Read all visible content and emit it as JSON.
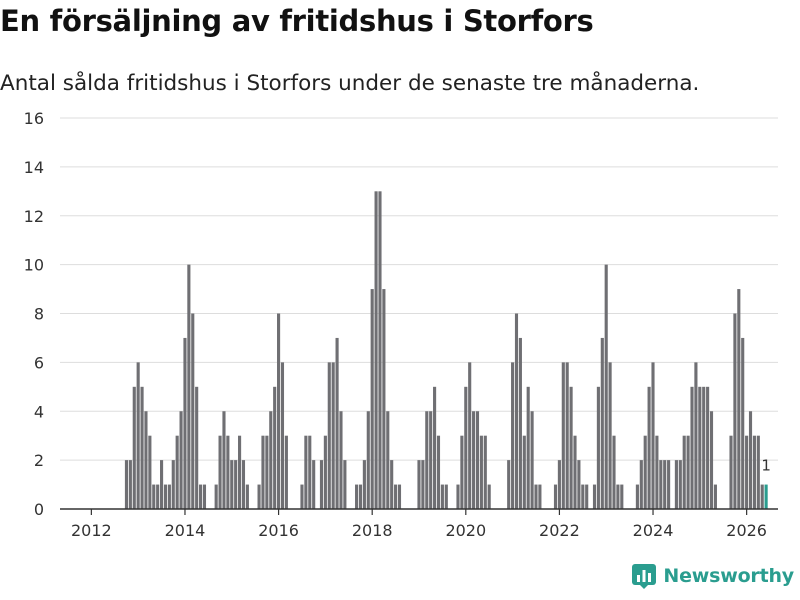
{
  "header": {
    "title": "En försäljning av fritidshus i Storfors",
    "subtitle": "Antal sålda fritidshus i Storfors under de senaste tre månaderna."
  },
  "brand": {
    "name": "Newsworthy",
    "color": "#2a9d8f"
  },
  "colors": {
    "bar": "#6f6f73",
    "highlight": "#2a9d8f",
    "grid": "#dddddd"
  },
  "chart_data": {
    "type": "bar",
    "title": "En försäljning av fritidshus i Storfors",
    "subtitle": "Antal sålda fritidshus i Storfors under de senaste tre månaderna.",
    "xlabel": "",
    "ylabel": "",
    "ylim": [
      0,
      16
    ],
    "yticks": [
      0,
      2,
      4,
      6,
      8,
      10,
      12,
      14,
      16
    ],
    "xlim": [
      2011.33,
      2026.67
    ],
    "xticks": [
      2012,
      2014,
      2016,
      2018,
      2020,
      2022,
      2024,
      2026
    ],
    "grid": true,
    "start": 2012.0,
    "step": 0.08333,
    "values": [
      0,
      0,
      0,
      0,
      0,
      0,
      0,
      0,
      0,
      2,
      2,
      5,
      6,
      5,
      4,
      3,
      1,
      1,
      2,
      1,
      1,
      2,
      3,
      4,
      7,
      10,
      8,
      5,
      1,
      1,
      0,
      0,
      1,
      3,
      4,
      3,
      2,
      2,
      3,
      2,
      1,
      0,
      0,
      1,
      3,
      3,
      4,
      5,
      8,
      6,
      3,
      0,
      0,
      0,
      1,
      3,
      3,
      2,
      0,
      2,
      3,
      6,
      6,
      7,
      4,
      2,
      0,
      0,
      1,
      1,
      2,
      4,
      9,
      13,
      13,
      9,
      4,
      2,
      1,
      1,
      0,
      0,
      0,
      0,
      2,
      2,
      4,
      4,
      5,
      3,
      1,
      1,
      0,
      0,
      1,
      3,
      5,
      6,
      4,
      4,
      3,
      3,
      1,
      0,
      0,
      0,
      0,
      2,
      6,
      8,
      7,
      3,
      5,
      4,
      1,
      1,
      0,
      0,
      0,
      1,
      2,
      6,
      6,
      5,
      3,
      2,
      1,
      1,
      0,
      1,
      5,
      7,
      10,
      6,
      3,
      1,
      1,
      0,
      0,
      0,
      1,
      2,
      3,
      5,
      6,
      3,
      2,
      2,
      2,
      0,
      2,
      2,
      3,
      3,
      5,
      6,
      5,
      5,
      5,
      4,
      1,
      0,
      0,
      0,
      3,
      8,
      9,
      7,
      3,
      4,
      3,
      3,
      1,
      1
    ],
    "highlight_last": true,
    "annotation": {
      "label": "1",
      "value": 1
    }
  }
}
